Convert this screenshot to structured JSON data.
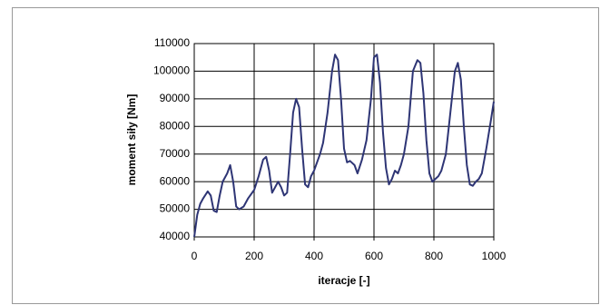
{
  "chart_data": {
    "type": "line",
    "xlabel": "iteracje [-]",
    "ylabel": "moment siły [Nm]",
    "xlim": [
      0,
      1000
    ],
    "xticks": [
      0,
      200,
      400,
      600,
      800,
      1000
    ],
    "ylim": [
      40000,
      110000
    ],
    "yticks": [
      40000,
      50000,
      60000,
      70000,
      80000,
      90000,
      100000,
      110000
    ],
    "grid": true,
    "series": [
      {
        "color": "#2e3575",
        "x": [
          0,
          10,
          20,
          30,
          45,
          55,
          65,
          75,
          85,
          95,
          110,
          120,
          130,
          140,
          150,
          165,
          180,
          200,
          215,
          230,
          240,
          250,
          260,
          270,
          280,
          290,
          300,
          310,
          320,
          330,
          340,
          350,
          360,
          370,
          380,
          390,
          400,
          410,
          420,
          430,
          445,
          460,
          470,
          480,
          490,
          500,
          510,
          520,
          535,
          545,
          560,
          575,
          590,
          600,
          610,
          620,
          630,
          640,
          650,
          660,
          670,
          680,
          690,
          700,
          715,
          730,
          745,
          755,
          765,
          775,
          785,
          795,
          805,
          815,
          825,
          840,
          855,
          870,
          880,
          890,
          900,
          910,
          920,
          930,
          940,
          950,
          960,
          975,
          990,
          1000
        ],
        "values": [
          40000,
          48000,
          52000,
          54000,
          56500,
          55000,
          49500,
          49000,
          55000,
          60000,
          63000,
          66000,
          60000,
          51000,
          50000,
          51000,
          54000,
          57000,
          62000,
          68000,
          69000,
          64000,
          56000,
          58000,
          60000,
          58000,
          55000,
          56000,
          70000,
          85000,
          90000,
          87000,
          72000,
          59000,
          58000,
          62000,
          64000,
          67000,
          70000,
          74000,
          85000,
          100000,
          106000,
          104000,
          90000,
          72000,
          67000,
          67500,
          66000,
          63000,
          68000,
          75000,
          90000,
          105000,
          106000,
          96000,
          78000,
          65000,
          59000,
          61000,
          64000,
          63000,
          66000,
          70000,
          80000,
          100000,
          104000,
          103000,
          92000,
          75000,
          63000,
          60000,
          61000,
          62000,
          64000,
          70000,
          85000,
          100000,
          103000,
          97000,
          80000,
          66000,
          59000,
          58500,
          60000,
          61000,
          63000,
          72000,
          82000,
          89000
        ]
      }
    ]
  }
}
